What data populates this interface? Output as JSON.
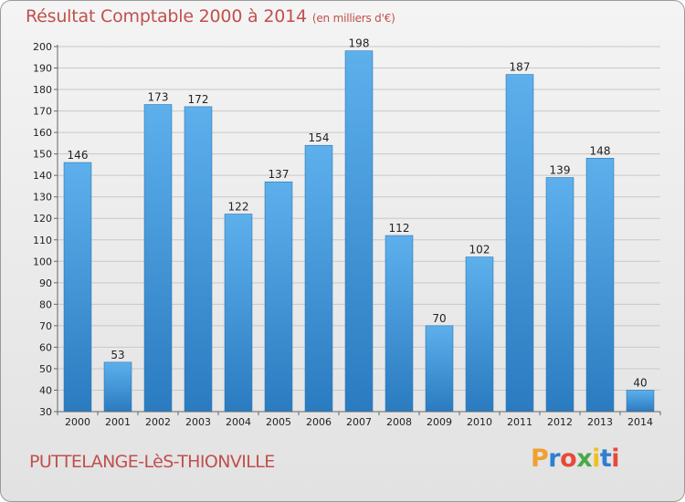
{
  "chart_data": {
    "type": "bar",
    "title": "Résultat Comptable 2000 à 2014",
    "subtitle": "(en milliers d'€)",
    "categories": [
      "2000",
      "2001",
      "2002",
      "2003",
      "2004",
      "2005",
      "2006",
      "2007",
      "2008",
      "2009",
      "2010",
      "2011",
      "2012",
      "2013",
      "2014"
    ],
    "values": [
      146,
      53,
      173,
      172,
      122,
      137,
      154,
      198,
      112,
      70,
      102,
      187,
      139,
      148,
      40
    ],
    "ylim": [
      30,
      200
    ],
    "yticks": [
      30,
      40,
      50,
      60,
      70,
      80,
      90,
      100,
      110,
      120,
      130,
      140,
      150,
      160,
      170,
      180,
      190,
      200
    ],
    "grid": true,
    "bar_color": "#4a9de0"
  },
  "commune": "PUTTELANGE-LèS-THIONVILLE",
  "logo": {
    "letters": [
      "P",
      "r",
      "o",
      "x",
      "i",
      "t",
      "i"
    ],
    "colors": [
      "#f0a030",
      "#2f7fd0",
      "#e84a3a",
      "#4aa84a",
      "#f0c020",
      "#2f7fd0",
      "#e84a3a"
    ]
  }
}
